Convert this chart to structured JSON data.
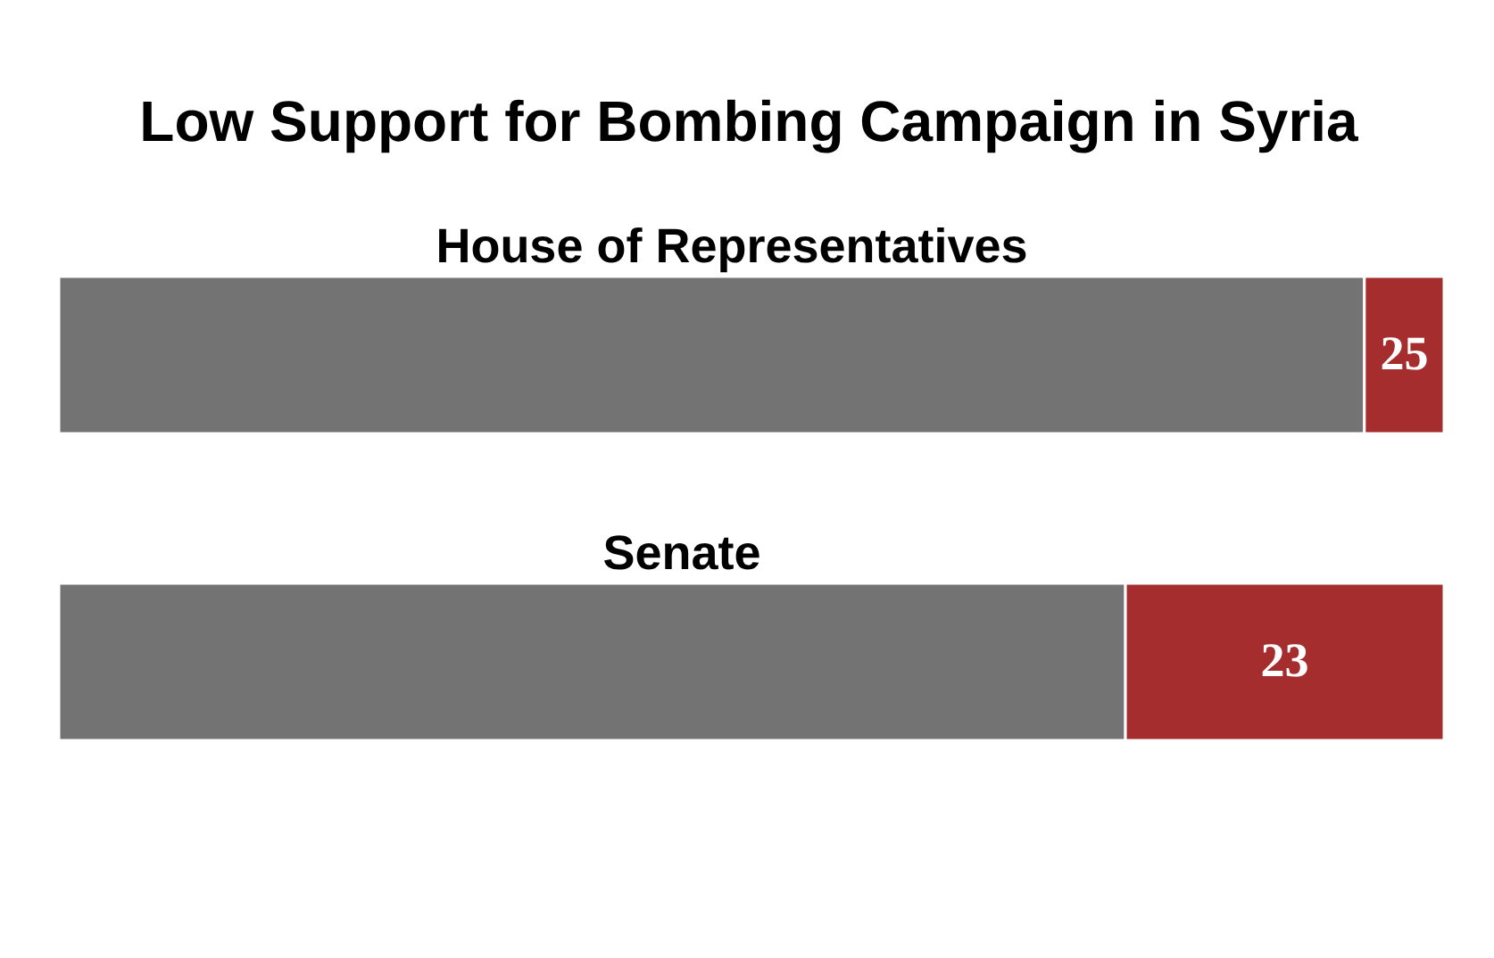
{
  "chart_data": [
    {
      "type": "bar",
      "title": "Low Support for Bombing Campaign in Syria",
      "categories": [
        "House of Representatives"
      ],
      "orientation": "horizontal",
      "stacked": true,
      "xlim": [
        0,
        435
      ],
      "series": [
        {
          "color": "#737373",
          "values": [
            410
          ]
        },
        {
          "color": "#a52d2d",
          "values": [
            25
          ],
          "value_labels": [
            "25"
          ]
        }
      ]
    },
    {
      "type": "bar",
      "categories": [
        "Senate"
      ],
      "orientation": "horizontal",
      "stacked": true,
      "xlim": [
        0,
        100
      ],
      "series": [
        {
          "color": "#737373",
          "values": [
            77
          ]
        },
        {
          "color": "#a52d2d",
          "values": [
            23
          ],
          "value_labels": [
            "23"
          ]
        }
      ]
    }
  ]
}
